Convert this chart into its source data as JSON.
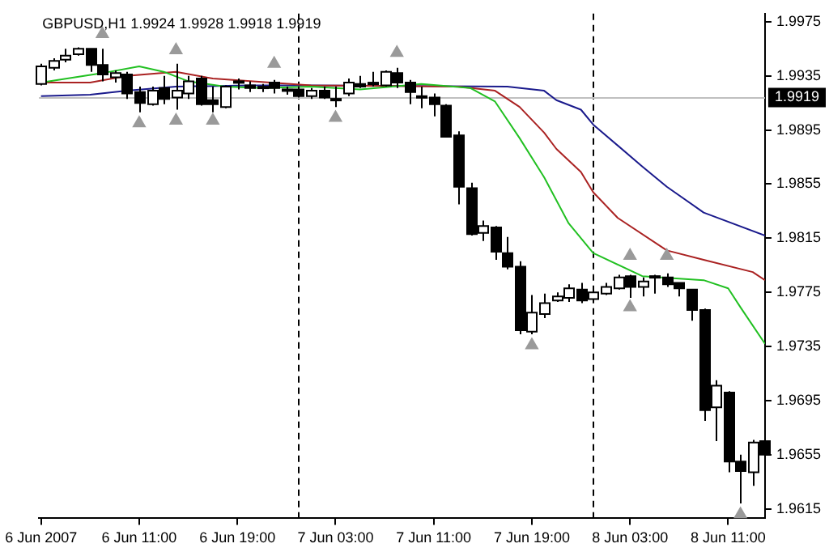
{
  "chart_data": {
    "type": "candlestick",
    "title": "GBPUSD,H1 1.9924 1.9928 1.9918 1.9919",
    "colors": [
      "#ffffff",
      "#ffffff",
      "#ffffff",
      "#ffffff",
      "#000000",
      "#000000",
      "#ffffff",
      "#000000",
      "#000000",
      "#ffffff",
      "#000000",
      "#ffffff",
      "#ffffff",
      "#000000",
      "#000000",
      "#ffffff",
      "#ffffff",
      "#000000",
      "#ffffff",
      "#000000",
      "#000000",
      "#000000",
      "#ffffff",
      "#000000",
      "#000000",
      "#ffffff",
      "#000000",
      "#ffffff",
      "#ffffff",
      "#000000",
      "#000000",
      "#000000",
      "#000000",
      "#000000",
      "#000000",
      "#000000",
      "#ffffff",
      "#000000",
      "#000000",
      "#000000",
      "#ffffff",
      "#ffffff",
      "#ffffff",
      "#ffffff",
      "#000000",
      "#ffffff",
      "#ffffff",
      "#ffffff",
      "#000000",
      "#ffffff",
      "#000000",
      "#000000",
      "#000000",
      "#000000",
      "#000000",
      "#ffffff",
      "#000000",
      "#000000",
      "#ffffff",
      "#000000"
    ],
    "x": [
      "2007-06-06T03:00",
      "2007-06-06T04:00",
      "2007-06-06T05:00",
      "2007-06-06T06:00",
      "2007-06-06T07:00",
      "2007-06-06T08:00",
      "2007-06-06T09:00",
      "2007-06-06T10:00",
      "2007-06-06T11:00",
      "2007-06-06T12:00",
      "2007-06-06T13:00",
      "2007-06-06T14:00",
      "2007-06-06T15:00",
      "2007-06-06T16:00",
      "2007-06-06T17:00",
      "2007-06-06T18:00",
      "2007-06-06T19:00",
      "2007-06-06T20:00",
      "2007-06-06T21:00",
      "2007-06-06T22:00",
      "2007-06-06T23:00",
      "2007-06-07T00:00",
      "2007-06-07T01:00",
      "2007-06-07T02:00",
      "2007-06-07T03:00",
      "2007-06-07T04:00",
      "2007-06-07T05:00",
      "2007-06-07T06:00",
      "2007-06-07T07:00",
      "2007-06-07T08:00",
      "2007-06-07T09:00",
      "2007-06-07T10:00",
      "2007-06-07T11:00",
      "2007-06-07T12:00",
      "2007-06-07T13:00",
      "2007-06-07T14:00",
      "2007-06-07T15:00",
      "2007-06-07T16:00",
      "2007-06-07T17:00",
      "2007-06-07T18:00",
      "2007-06-07T19:00",
      "2007-06-07T20:00",
      "2007-06-07T21:00",
      "2007-06-07T22:00",
      "2007-06-07T23:00",
      "2007-06-08T00:00",
      "2007-06-08T01:00",
      "2007-06-08T02:00",
      "2007-06-08T03:00",
      "2007-06-08T04:00",
      "2007-06-08T05:00",
      "2007-06-08T06:00",
      "2007-06-08T07:00",
      "2007-06-08T08:00",
      "2007-06-08T09:00",
      "2007-06-08T10:00",
      "2007-06-08T11:00",
      "2007-06-08T12:00",
      "2007-06-08T13:00",
      "2007-06-08T14:00"
    ],
    "ohlc": [
      [
        1.9929,
        1.9944,
        1.9928,
        1.9942
      ],
      [
        1.9941,
        1.9948,
        1.9939,
        1.9946
      ],
      [
        1.9947,
        1.9955,
        1.9945,
        1.995
      ],
      [
        1.9951,
        1.9956,
        1.995,
        1.9955
      ],
      [
        1.9955,
        1.9955,
        1.9938,
        1.9943
      ],
      [
        1.9943,
        1.9955,
        1.9931,
        1.9936
      ],
      [
        1.9934,
        1.9939,
        1.993,
        1.9937
      ],
      [
        1.9936,
        1.9938,
        1.9918,
        1.9922
      ],
      [
        1.9923,
        1.9927,
        1.9908,
        1.9915
      ],
      [
        1.9914,
        1.9927,
        1.9913,
        1.9924
      ],
      [
        1.9926,
        1.9935,
        1.9914,
        1.9918
      ],
      [
        1.9919,
        1.9944,
        1.991,
        1.9924
      ],
      [
        1.9922,
        1.9935,
        1.9918,
        1.9931
      ],
      [
        1.9933,
        1.9935,
        1.9913,
        1.9914
      ],
      [
        1.9917,
        1.9927,
        1.9908,
        1.9914
      ],
      [
        1.9912,
        1.9928,
        1.9911,
        1.9927
      ],
      [
        1.993,
        1.9933,
        1.9925,
        1.9931
      ],
      [
        1.9928,
        1.9931,
        1.9923,
        1.9926
      ],
      [
        1.9926,
        1.9929,
        1.9923,
        1.9927
      ],
      [
        1.993,
        1.9932,
        1.9922,
        1.9926
      ],
      [
        1.9925,
        1.9927,
        1.9921,
        1.9924
      ],
      [
        1.9925,
        1.9927,
        1.9919,
        1.992
      ],
      [
        1.992,
        1.9926,
        1.9918,
        1.9924
      ],
      [
        1.9924,
        1.9927,
        1.9918,
        1.9919
      ],
      [
        1.9918,
        1.9927,
        1.9912,
        1.9918
      ],
      [
        1.9922,
        1.9933,
        1.992,
        1.993
      ],
      [
        1.9929,
        1.9935,
        1.9926,
        1.9927
      ],
      [
        1.9929,
        1.9938,
        1.9927,
        1.993
      ],
      [
        1.9928,
        1.9939,
        1.9927,
        1.9938
      ],
      [
        1.9937,
        1.9941,
        1.9926,
        1.993
      ],
      [
        1.993,
        1.9932,
        1.9914,
        1.9923
      ],
      [
        1.992,
        1.9927,
        1.9911,
        1.9919
      ],
      [
        1.9919,
        1.9922,
        1.9905,
        1.9914
      ],
      [
        1.9913,
        1.9914,
        1.989,
        1.989
      ],
      [
        1.9891,
        1.9894,
        1.984,
        1.9853
      ],
      [
        1.9852,
        1.9856,
        1.9817,
        1.9818
      ],
      [
        1.9819,
        1.9828,
        1.9813,
        1.9824
      ],
      [
        1.9823,
        1.9824,
        1.9799,
        1.9805
      ],
      [
        1.9804,
        1.9816,
        1.9792,
        1.9794
      ],
      [
        1.9794,
        1.9798,
        1.9744,
        1.9747
      ],
      [
        1.9746,
        1.9773,
        1.9744,
        1.976
      ],
      [
        1.9759,
        1.9774,
        1.9756,
        1.9767
      ],
      [
        1.9769,
        1.9775,
        1.9768,
        1.9772
      ],
      [
        1.9771,
        1.9781,
        1.9768,
        1.9778
      ],
      [
        1.9777,
        1.9782,
        1.9767,
        1.9769
      ],
      [
        1.977,
        1.9777,
        1.9768,
        1.9775
      ],
      [
        1.9774,
        1.9782,
        1.9773,
        1.9779
      ],
      [
        1.9778,
        1.9788,
        1.9777,
        1.9786
      ],
      [
        1.9787,
        1.9788,
        1.9771,
        1.9779
      ],
      [
        1.9779,
        1.9786,
        1.9772,
        1.9783
      ],
      [
        1.9787,
        1.9788,
        1.9774,
        1.9786
      ],
      [
        1.9786,
        1.9789,
        1.9779,
        1.9781
      ],
      [
        1.9782,
        1.9782,
        1.9772,
        1.9778
      ],
      [
        1.9777,
        1.9777,
        1.9754,
        1.9762
      ],
      [
        1.9762,
        1.9763,
        1.968,
        1.9688
      ],
      [
        1.969,
        1.971,
        1.9665,
        1.9706
      ],
      [
        1.9701,
        1.9702,
        1.9642,
        1.965
      ],
      [
        1.965,
        1.9655,
        1.9619,
        1.9643
      ],
      [
        1.9642,
        1.9666,
        1.9632,
        1.9664
      ],
      [
        1.9665,
        1.9677,
        1.9653,
        1.9655
      ]
    ],
    "series": [
      {
        "type": "line",
        "color": "#22c022",
        "x": [
          "2007-06-06T03:00",
          "2007-06-06T08:00",
          "2007-06-06T11:00",
          "2007-06-06T13:00",
          "2007-06-06T15:00",
          "2007-06-06T18:00",
          "2007-06-06T21:00",
          "2007-06-07T01:00",
          "2007-06-07T05:00",
          "2007-06-07T10:00",
          "2007-06-07T14:00",
          "2007-06-07T16:00",
          "2007-06-07T18:00",
          "2007-06-07T20:00",
          "2007-06-07T22:00",
          "2007-06-08T00:00",
          "2007-06-08T04:00",
          "2007-06-08T09:00",
          "2007-06-08T11:00",
          "2007-06-08T12:00",
          "2007-06-08T14:00"
        ],
        "values": [
          1.993,
          1.9937,
          1.9942,
          1.9938,
          1.9931,
          1.9927,
          1.9926,
          1.9927,
          1.9925,
          1.9929,
          1.9926,
          1.9916,
          1.9889,
          1.986,
          1.9826,
          1.9804,
          1.9787,
          1.9784,
          1.9778,
          1.9764,
          1.9737
        ]
      },
      {
        "type": "line",
        "color": "#aa2222",
        "x": [
          "2007-06-06T03:00",
          "2007-06-06T07:00",
          "2007-06-06T10:00",
          "2007-06-06T14:00",
          "2007-06-06T17:00",
          "2007-06-07T01:00",
          "2007-06-07T13:00",
          "2007-06-07T16:00",
          "2007-06-07T18:00",
          "2007-06-07T20:00",
          "2007-06-07T21:00",
          "2007-06-07T23:00",
          "2007-06-08T00:00",
          "2007-06-08T02:00",
          "2007-06-08T06:00",
          "2007-06-08T09:00",
          "2007-06-08T13:00",
          "2007-06-08T14:00"
        ],
        "values": [
          1.993,
          1.993,
          1.9935,
          1.9938,
          1.9933,
          1.9928,
          1.9927,
          1.9924,
          1.9912,
          1.9893,
          1.9881,
          1.9864,
          1.9849,
          1.983,
          1.9806,
          1.9799,
          1.979,
          1.9784
        ]
      },
      {
        "type": "line",
        "color": "#1a1a8c",
        "x": [
          "2007-06-06T03:00",
          "2007-06-06T07:00",
          "2007-06-06T10:00",
          "2007-06-06T14:00",
          "2007-06-06T20:00",
          "2007-06-07T01:00",
          "2007-06-07T17:00",
          "2007-06-07T20:00",
          "2007-06-07T21:00",
          "2007-06-07T23:00",
          "2007-06-08T00:00",
          "2007-06-08T04:00",
          "2007-06-08T06:00",
          "2007-06-08T09:00",
          "2007-06-08T14:00"
        ],
        "values": [
          1.992,
          1.9921,
          1.9924,
          1.9927,
          1.9928,
          1.9928,
          1.9927,
          1.9924,
          1.9917,
          1.991,
          1.9899,
          1.9868,
          1.9853,
          1.9834,
          1.9817
        ]
      },
      {
        "type": "scatter",
        "color": "#9a9a9a",
        "marker": "triangle",
        "x": [
          "2007-06-06T08:00",
          "2007-06-06T14:00",
          "2007-06-06T22:00",
          "2007-06-07T08:00",
          "2007-06-08T03:00",
          "2007-06-08T06:00"
        ],
        "values": [
          1.9966,
          1.9954,
          1.9944,
          1.9952,
          1.9802,
          1.9802
        ]
      },
      {
        "type": "scatter",
        "color": "#9a9a9a",
        "marker": "triangle",
        "x": [
          "2007-06-06T11:00",
          "2007-06-06T14:00",
          "2007-06-06T17:00",
          "2007-06-07T03:00",
          "2007-06-07T19:00",
          "2007-06-08T03:00",
          "2007-06-08T12:00"
        ],
        "values": [
          1.99,
          1.9902,
          1.9902,
          1.9904,
          1.9736,
          1.9764,
          1.9611
        ]
      }
    ],
    "xlim": [
      "2007-06-06T02:50",
      "2007-06-08T14:00"
    ],
    "xticks": [
      {
        "value": "2007-06-06T03:00",
        "label": "6 Jun 2007"
      },
      {
        "value": "2007-06-06T11:00",
        "label": "6 Jun 11:00"
      },
      {
        "value": "2007-06-06T19:00",
        "label": "6 Jun 19:00"
      },
      {
        "value": "2007-06-07T03:00",
        "label": "7 Jun 03:00"
      },
      {
        "value": "2007-06-07T11:00",
        "label": "7 Jun 11:00"
      },
      {
        "value": "2007-06-07T19:00",
        "label": "7 Jun 19:00"
      },
      {
        "value": "2007-06-08T03:00",
        "label": "8 Jun 03:00"
      },
      {
        "value": "2007-06-08T11:00",
        "label": "8 Jun 11:00"
      }
    ],
    "ylim": [
      1.9608,
      1.9981
    ],
    "yticks": [
      1.9615,
      1.9655,
      1.9695,
      1.9735,
      1.9775,
      1.9815,
      1.9855,
      1.9895,
      1.9935,
      1.9975
    ],
    "ref_lines": [
      {
        "axis": "x",
        "value": "2007-06-07T00:00",
        "color": "#000000",
        "line_style": "dashed"
      },
      {
        "axis": "x",
        "value": "2007-06-08T00:00",
        "color": "#000000",
        "line_style": "dashed"
      },
      {
        "axis": "y",
        "value": 1.9919,
        "label": "1.9919",
        "color": "#c0c0c0",
        "line_style": "solid"
      }
    ],
    "grid": false,
    "legend": false,
    "line_style": "solid"
  }
}
